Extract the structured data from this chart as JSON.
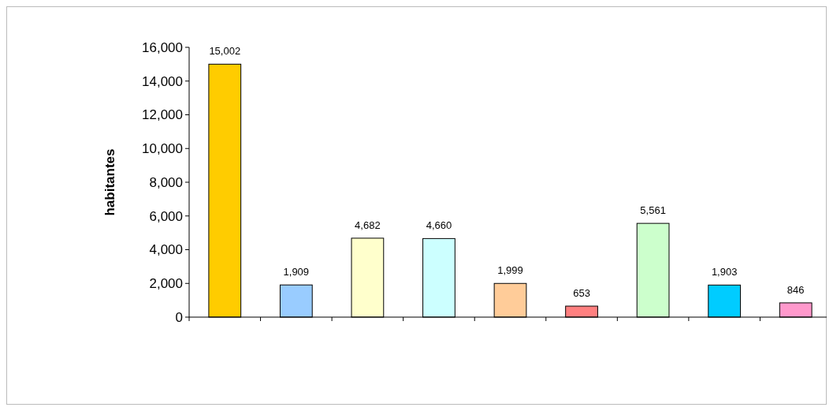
{
  "chart_data": {
    "type": "bar",
    "ylabel": "habitantes",
    "categories": [
      null,
      null,
      null,
      null,
      null,
      null,
      null,
      null,
      null
    ],
    "values": [
      15002,
      1909,
      4682,
      4660,
      1999,
      653,
      5561,
      1903,
      846
    ],
    "colors": [
      "#ffcc00",
      "#99ccff",
      "#ffffcc",
      "#ccffff",
      "#ffcc99",
      "#ff8080",
      "#ccffcc",
      "#00ccff",
      "#ff99cc"
    ],
    "ylim": [
      0,
      16000
    ],
    "yticks": [
      {
        "value": 0,
        "label": "0"
      },
      {
        "value": 2000,
        "label": "2,000"
      },
      {
        "value": 4000,
        "label": "4,000"
      },
      {
        "value": 6000,
        "label": "6,000"
      },
      {
        "value": 8000,
        "label": "8,000"
      },
      {
        "value": 10000,
        "label": "10,000"
      },
      {
        "value": 12000,
        "label": "12,000"
      },
      {
        "value": 14000,
        "label": "14,000"
      },
      {
        "value": 16000,
        "label": "16,000"
      }
    ],
    "value_labels": [
      "15,002",
      "1,909",
      "4,682",
      "4,660",
      "1,999",
      "653",
      "5,561",
      "1,903",
      "846"
    ],
    "grid": false
  }
}
